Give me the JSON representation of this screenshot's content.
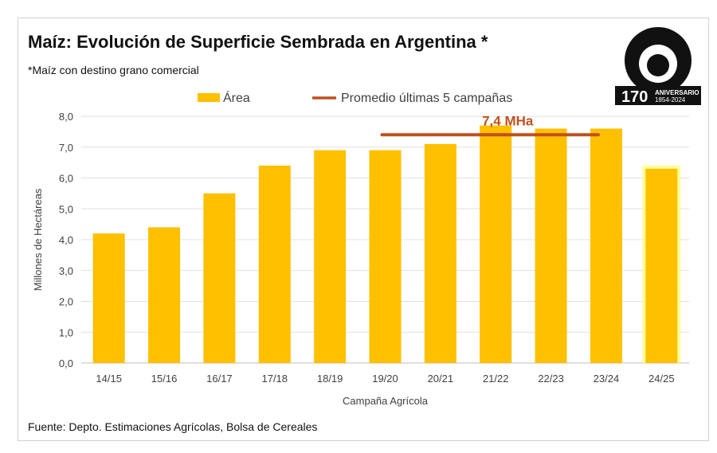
{
  "title": "Maíz: Evolución de Superficie Sembrada en Argentina *",
  "subtitle": "*Maíz con destino grano comercial",
  "source": "Fuente: Depto. Estimaciones Agrícolas, Bolsa de Cereales",
  "logo": {
    "name": "Bolsa de Cereales",
    "text": "170 ANIVERSARIO 1854-2024"
  },
  "chart_data": {
    "type": "bar",
    "title": "Maíz: Evolución de Superficie Sembrada en Argentina *",
    "xlabel": "Campaña Agrícola",
    "ylabel": "Millones de Hectáreas",
    "ylim": [
      0,
      8
    ],
    "yticks": [
      "0,0",
      "1,0",
      "2,0",
      "3,0",
      "4,0",
      "5,0",
      "6,0",
      "7,0",
      "8,0"
    ],
    "grid": true,
    "legend_placement": "top",
    "categories": [
      "14/15",
      "15/16",
      "16/17",
      "17/18",
      "18/19",
      "19/20",
      "20/21",
      "21/22",
      "22/23",
      "23/24",
      "24/25"
    ],
    "series": [
      {
        "name": "Área",
        "values": [
          4.2,
          4.4,
          5.5,
          6.4,
          6.9,
          6.9,
          7.1,
          7.7,
          7.6,
          7.6,
          6.3
        ],
        "color": "#FFC000",
        "highlighted_last": true
      }
    ],
    "average_line": {
      "name": "Promedio últimas 5 campañas",
      "value": 7.4,
      "from": "19/20",
      "to": "23/24",
      "label": "7,4 MHa",
      "color": "#C0501E"
    }
  }
}
